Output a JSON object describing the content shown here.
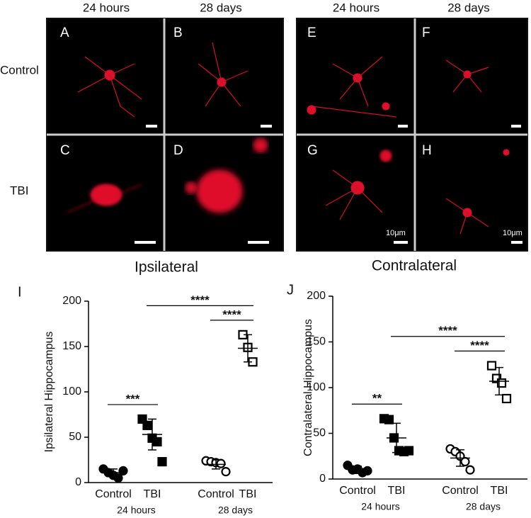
{
  "images": {
    "columns": [
      "24 hours",
      "28 days",
      "24 hours",
      "28 days"
    ],
    "rows": [
      "Control",
      "TBI"
    ],
    "panels": [
      "A",
      "B",
      "C",
      "D",
      "E",
      "F",
      "G",
      "H"
    ],
    "sides": [
      "Ipsilateral",
      "Contralateral"
    ],
    "scale_label": "10μm"
  },
  "chart_data": [
    {
      "type": "dot",
      "label": "I",
      "ylabel": "Ipsilateral Hippocampus",
      "categories": [
        "Control",
        "TBI",
        "Control",
        "TBI"
      ],
      "groups": [
        "24 hours",
        "28 days"
      ],
      "marker": [
        "circle",
        "square",
        "circle",
        "square"
      ],
      "filled": [
        true,
        true,
        false,
        false
      ],
      "color": "#000000",
      "points": [
        [
          15,
          11,
          8,
          5,
          13
        ],
        [
          70,
          63,
          49,
          45,
          23
        ],
        [
          24,
          23,
          22,
          21,
          12
        ],
        [
          163,
          149,
          133
        ]
      ],
      "means": [
        11,
        53,
        20,
        148
      ],
      "sds": [
        4,
        17,
        5,
        15
      ],
      "ylim": [
        0,
        200
      ],
      "yticks": [
        0,
        50,
        100,
        150,
        200
      ],
      "annotations": [
        {
          "text": "***",
          "from": 0,
          "to": 1
        },
        {
          "text": "****",
          "from": 2,
          "to": 3
        },
        {
          "text": "****",
          "from": 1,
          "to": 3
        }
      ]
    },
    {
      "type": "dot",
      "label": "J",
      "ylabel": "Contralateral Hippocampus",
      "categories": [
        "Control",
        "TBI",
        "Control",
        "TBI"
      ],
      "groups": [
        "24 hours",
        "28 days"
      ],
      "marker": [
        "circle",
        "square",
        "circle",
        "square"
      ],
      "filled": [
        true,
        true,
        false,
        false
      ],
      "color": "#000000",
      "points": [
        [
          15,
          10,
          11,
          7,
          9
        ],
        [
          66,
          65,
          45,
          31,
          30,
          31
        ],
        [
          33,
          30,
          25,
          19,
          10
        ],
        [
          124,
          110,
          105,
          88
        ]
      ],
      "means": [
        10,
        45,
        23,
        107
      ],
      "sds": [
        4,
        16,
        9,
        15
      ],
      "ylim": [
        0,
        200
      ],
      "yticks": [
        0,
        50,
        100,
        150,
        200
      ],
      "annotations": [
        {
          "text": "**",
          "from": 0,
          "to": 1
        },
        {
          "text": "****",
          "from": 2,
          "to": 3
        },
        {
          "text": "****",
          "from": 1,
          "to": 3
        }
      ]
    }
  ]
}
